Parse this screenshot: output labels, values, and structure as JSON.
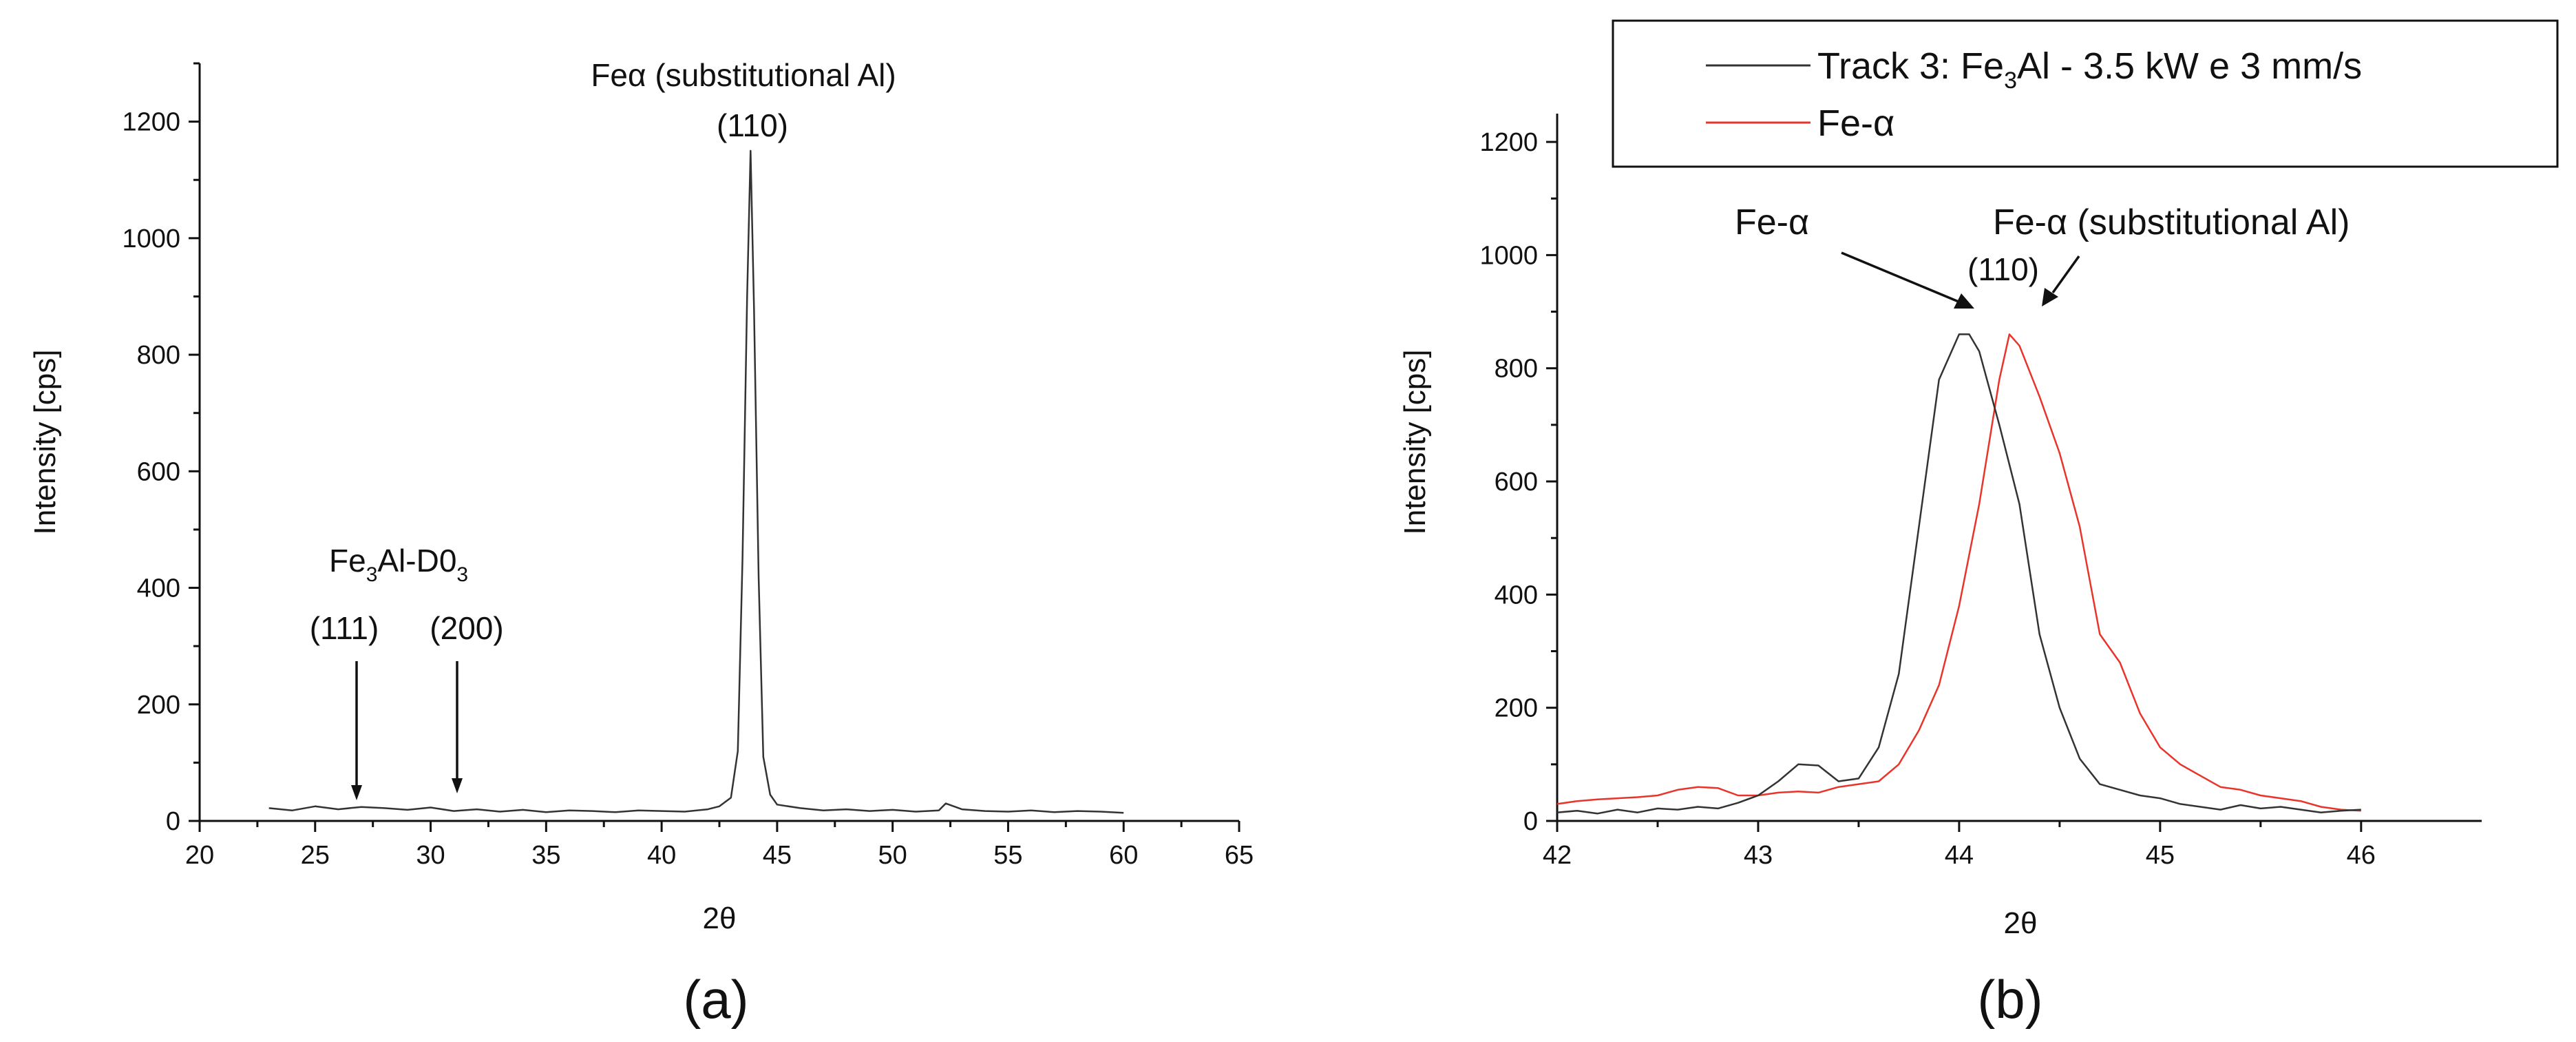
{
  "chart_data": [
    {
      "id": "a",
      "type": "line",
      "panel_label": "(a)",
      "title": "",
      "xlabel": "2θ",
      "ylabel": "Intensity [cps]",
      "xlim": [
        20,
        65
      ],
      "ylim": [
        0,
        1300
      ],
      "xticks": [
        20,
        25,
        30,
        35,
        40,
        45,
        50,
        55,
        60,
        65
      ],
      "yticks": [
        0,
        200,
        400,
        600,
        800,
        1000,
        1200
      ],
      "grid": false,
      "series": [
        {
          "color": "#333333",
          "x": [
            23,
            24,
            25,
            26,
            27,
            28,
            29,
            30,
            31,
            32,
            33,
            34,
            35,
            36,
            37,
            38,
            39,
            40,
            41,
            42,
            42.5,
            43,
            43.3,
            43.5,
            43.7,
            43.85,
            44,
            44.2,
            44.4,
            44.7,
            45,
            46,
            47,
            48,
            49,
            50,
            51,
            52,
            52.3,
            53,
            54,
            55,
            56,
            57,
            58,
            59,
            60
          ],
          "y": [
            22,
            18,
            25,
            20,
            24,
            22,
            19,
            23,
            17,
            20,
            16,
            19,
            15,
            18,
            17,
            15,
            18,
            17,
            16,
            20,
            25,
            40,
            120,
            450,
            900,
            1150,
            880,
            420,
            110,
            45,
            28,
            22,
            18,
            20,
            17,
            19,
            16,
            18,
            30,
            20,
            17,
            16,
            18,
            15,
            17,
            16,
            14
          ]
        }
      ],
      "annotations": {
        "peak_name": "Feα (substitutional Al)",
        "peak_hkl": "(110)",
        "phase_main": "Fe",
        "phase_sub1": "3",
        "phase_mid": "Al-D0",
        "phase_sub2": "3",
        "hkl_111": "(111)",
        "hkl_200": "(200)"
      }
    },
    {
      "id": "b",
      "type": "line",
      "panel_label": "(b)",
      "title": "",
      "xlabel": "2θ",
      "ylabel": "Intensity [cps]",
      "xlim": [
        42,
        46.6
      ],
      "ylim": [
        0,
        1250
      ],
      "xticks": [
        42,
        43,
        44,
        45,
        46
      ],
      "yticks": [
        0,
        200,
        400,
        600,
        800,
        1000,
        1200
      ],
      "grid": false,
      "legend_placement": "top",
      "series": [
        {
          "color": "#333333",
          "legend_pre": "Track 3: Fe",
          "legend_sub": "3",
          "legend_post": "Al - 3.5 kW e 3 mm/s",
          "x": [
            42,
            42.1,
            42.2,
            42.3,
            42.4,
            42.5,
            42.6,
            42.7,
            42.8,
            42.9,
            43.0,
            43.1,
            43.2,
            43.3,
            43.4,
            43.5,
            43.6,
            43.7,
            43.8,
            43.9,
            44.0,
            44.05,
            44.1,
            44.2,
            44.3,
            44.4,
            44.5,
            44.6,
            44.7,
            44.8,
            44.9,
            45.0,
            45.1,
            45.2,
            45.3,
            45.4,
            45.5,
            45.6,
            45.7,
            45.8,
            45.9,
            46.0
          ],
          "y": [
            15,
            18,
            13,
            20,
            15,
            22,
            20,
            25,
            22,
            32,
            45,
            70,
            100,
            98,
            70,
            75,
            130,
            260,
            520,
            780,
            860,
            860,
            830,
            700,
            560,
            330,
            200,
            110,
            65,
            55,
            45,
            40,
            30,
            25,
            20,
            28,
            22,
            25,
            20,
            15,
            18,
            20
          ]
        },
        {
          "color": "#e8342a",
          "legend": "Fe-α",
          "x": [
            42,
            42.1,
            42.2,
            42.3,
            42.4,
            42.5,
            42.6,
            42.7,
            42.8,
            42.9,
            43.0,
            43.1,
            43.2,
            43.3,
            43.4,
            43.5,
            43.6,
            43.7,
            43.8,
            43.9,
            44.0,
            44.1,
            44.2,
            44.25,
            44.3,
            44.4,
            44.5,
            44.6,
            44.7,
            44.8,
            44.9,
            45.0,
            45.1,
            45.2,
            45.3,
            45.4,
            45.5,
            45.6,
            45.7,
            45.8,
            45.9,
            46.0
          ],
          "y": [
            30,
            35,
            38,
            40,
            42,
            45,
            55,
            60,
            58,
            45,
            45,
            50,
            52,
            50,
            60,
            65,
            70,
            100,
            160,
            240,
            380,
            560,
            780,
            860,
            840,
            750,
            650,
            520,
            330,
            280,
            190,
            130,
            100,
            80,
            60,
            55,
            45,
            40,
            35,
            25,
            20,
            18
          ]
        }
      ],
      "annotations": {
        "fe_alpha": "Fe-α",
        "peak_hkl": "(110)",
        "fe_alpha_sub": "Fe-α (substitutional Al)"
      }
    }
  ]
}
